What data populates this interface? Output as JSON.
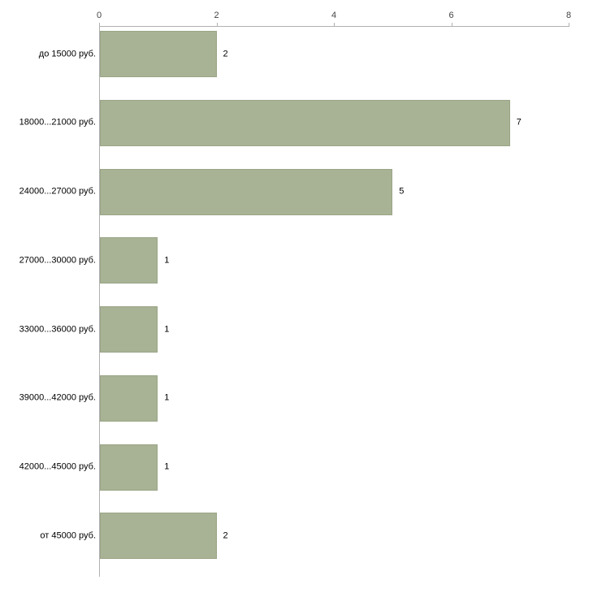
{
  "chart_data": {
    "type": "bar",
    "orientation": "horizontal",
    "title": "",
    "xlabel": "",
    "ylabel": "",
    "categories": [
      "до 15000 руб.",
      "18000...21000 руб.",
      "24000...27000 руб.",
      "27000...30000 руб.",
      "33000...36000 руб.",
      "39000...42000 руб.",
      "42000...45000 руб.",
      "от 45000 руб."
    ],
    "values": [
      2,
      7,
      5,
      1,
      1,
      1,
      1,
      2
    ],
    "xlim": [
      0,
      8
    ],
    "xticks": [
      0,
      2,
      4,
      6,
      8
    ],
    "grid": false,
    "legend": "none",
    "value_labels_shown": true,
    "bar_color": "#a8b294",
    "bar_border_color": "#9aa587",
    "axis_color": "#b0b0b0",
    "tick_label_color": "#444444",
    "label_color": "#000000",
    "background_color": "#ffffff"
  }
}
